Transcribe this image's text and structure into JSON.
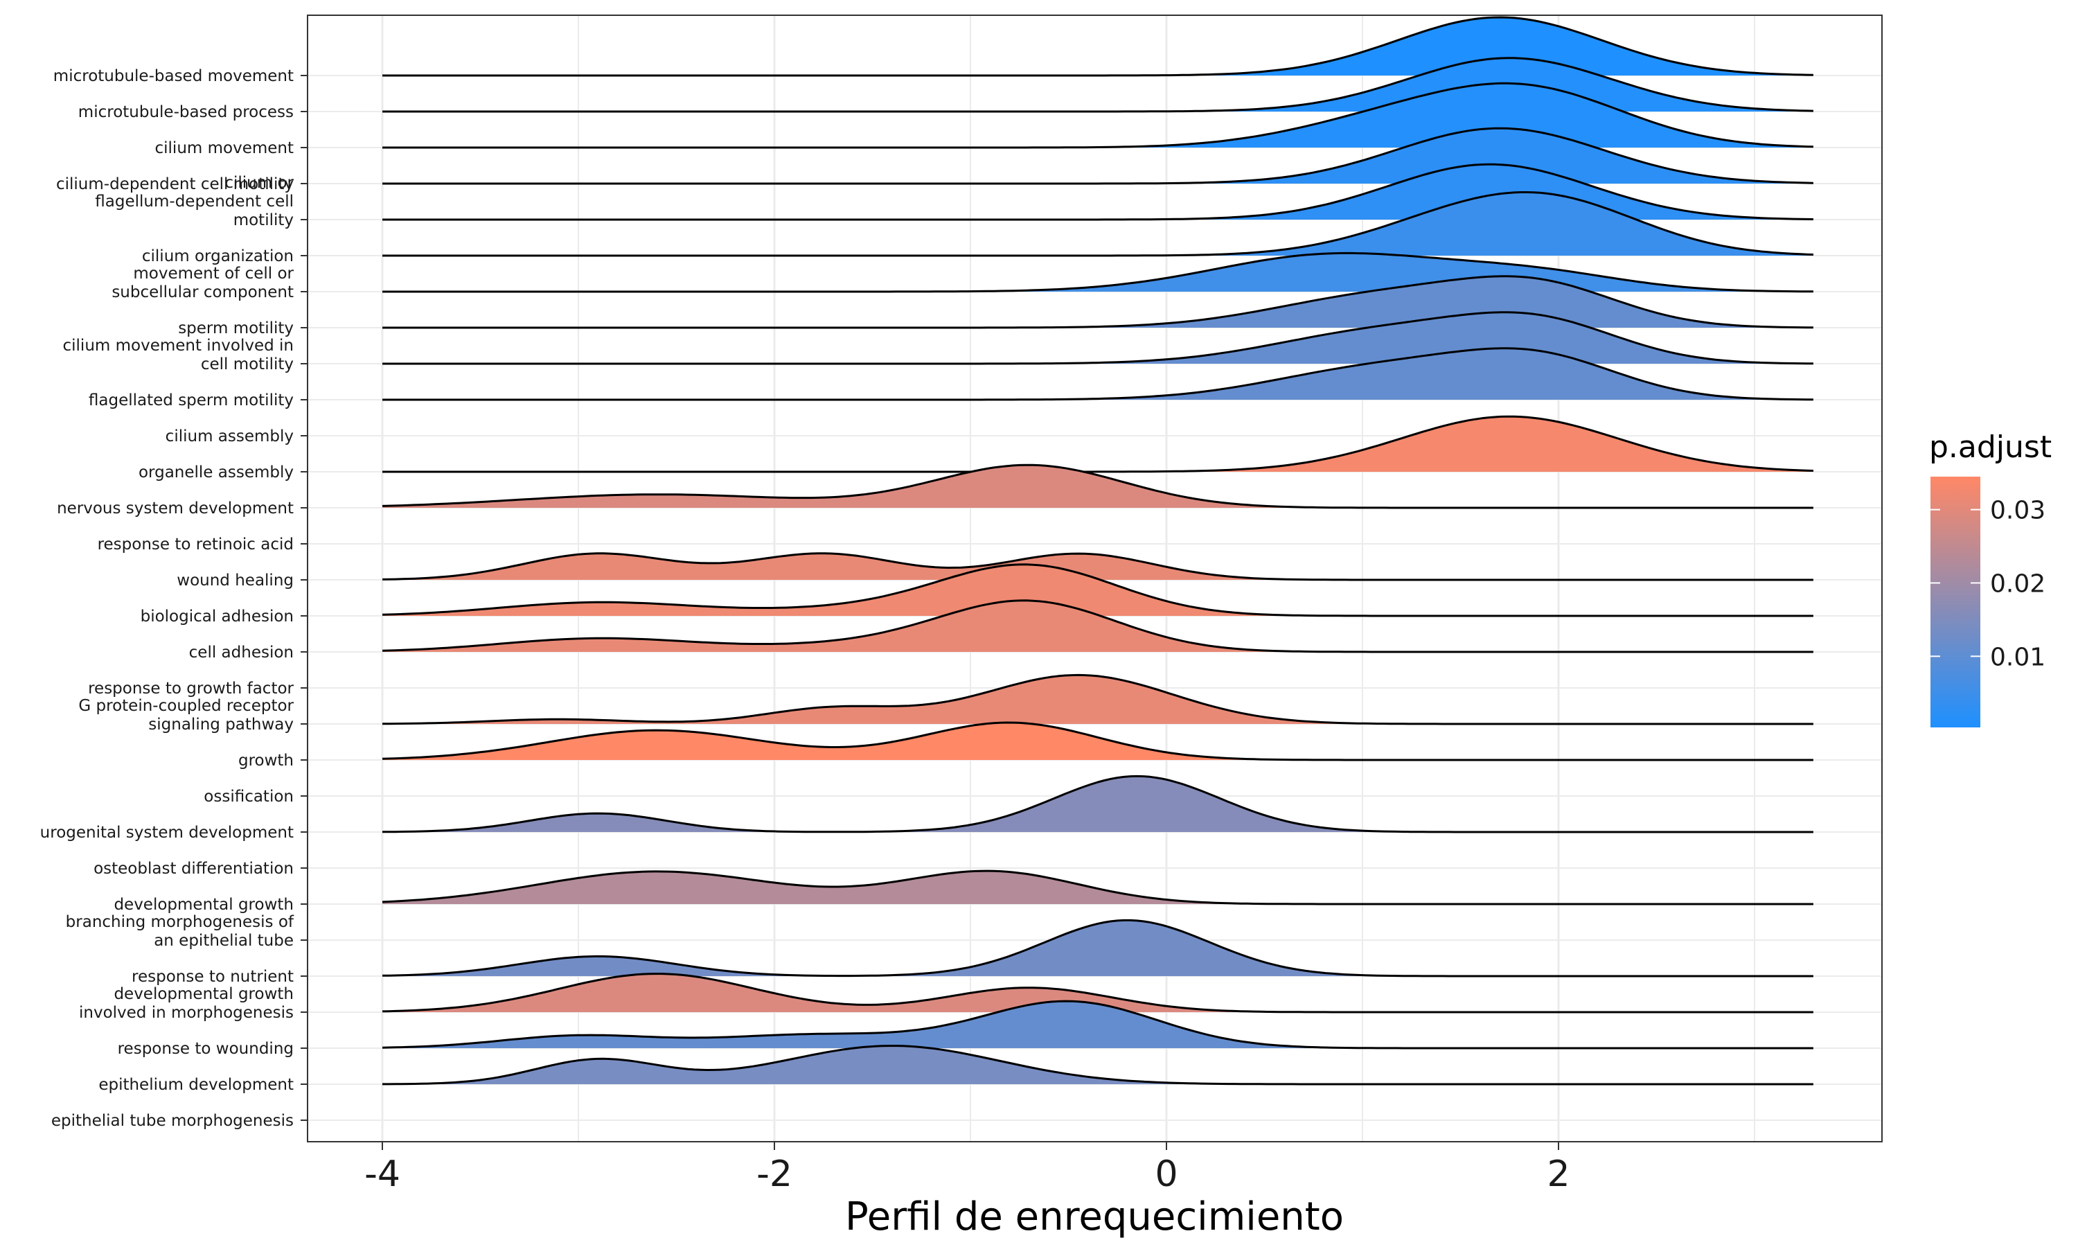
{
  "chart_data": {
    "type": "ridgeline",
    "xlabel": "Perfil de enrequecimiento",
    "ylabel": "",
    "xlim": [
      -4.4,
      3.6
    ],
    "x_ticks": [
      -4,
      -2,
      0,
      2
    ],
    "x_tick_labels": [
      "-4",
      "-2",
      "0",
      "2"
    ],
    "x_range_lines": [
      -4.0,
      3.3
    ],
    "grid": true,
    "legend": {
      "title": "p.adjust",
      "position": "right",
      "ticks": [
        0.01,
        0.02,
        0.03
      ],
      "tick_labels": [
        "0.01",
        "0.02",
        "0.03"
      ],
      "range": [
        0.0003,
        0.0345
      ],
      "color_low": "#1E90FF",
      "color_high": "#FF8866"
    },
    "categories": [
      {
        "lines": [
          "microtubule-based movement"
        ]
      },
      {
        "lines": [
          "microtubule-based process"
        ]
      },
      {
        "lines": [
          "cilium movement"
        ]
      },
      {
        "lines": [
          "cilium-dependent cell motility"
        ]
      },
      {
        "lines": [
          "cilium or",
          "flagellum-dependent cell",
          "motility"
        ]
      },
      {
        "lines": [
          "cilium organization"
        ]
      },
      {
        "lines": [
          "movement of cell or",
          "subcellular component"
        ]
      },
      {
        "lines": [
          "sperm motility"
        ]
      },
      {
        "lines": [
          "cilium movement involved in",
          "cell motility"
        ]
      },
      {
        "lines": [
          "flagellated sperm motility"
        ]
      },
      {
        "lines": [
          "cilium assembly"
        ]
      },
      {
        "lines": [
          "organelle assembly"
        ]
      },
      {
        "lines": [
          "nervous system development"
        ]
      },
      {
        "lines": [
          "response to retinoic acid"
        ]
      },
      {
        "lines": [
          "wound healing"
        ]
      },
      {
        "lines": [
          "biological adhesion"
        ]
      },
      {
        "lines": [
          "cell adhesion"
        ]
      },
      {
        "lines": [
          "response to growth factor"
        ]
      },
      {
        "lines": [
          "G protein-coupled receptor",
          "signaling pathway"
        ]
      },
      {
        "lines": [
          "growth"
        ]
      },
      {
        "lines": [
          "ossification"
        ]
      },
      {
        "lines": [
          "urogenital system development"
        ]
      },
      {
        "lines": [
          "osteoblast differentiation"
        ]
      },
      {
        "lines": [
          "developmental growth"
        ]
      },
      {
        "lines": [
          "branching morphogenesis of",
          "an epithelial tube"
        ]
      },
      {
        "lines": [
          "response to nutrient"
        ]
      },
      {
        "lines": [
          "developmental growth",
          "involved in morphogenesis"
        ]
      },
      {
        "lines": [
          "response to wounding"
        ]
      },
      {
        "lines": [
          "epithelium development"
        ]
      },
      {
        "lines": [
          "epithelial tube morphogenesis"
        ]
      }
    ],
    "series": [
      {
        "label_index": 1,
        "p_adjust": 0.0003,
        "peaks": [
          [
            1.7,
            0.52,
            1.0
          ]
        ]
      },
      {
        "label_index": 2,
        "p_adjust": 0.0012,
        "peaks": [
          [
            1.75,
            0.52,
            0.92
          ]
        ]
      },
      {
        "label_index": 3,
        "p_adjust": 0.0012,
        "peaks": [
          [
            1.85,
            0.5,
            0.95
          ],
          [
            1.1,
            0.5,
            0.4
          ]
        ]
      },
      {
        "label_index": 4,
        "p_adjust": 0.0025,
        "peaks": [
          [
            1.7,
            0.53,
            0.95
          ]
        ]
      },
      {
        "label_index": 5,
        "p_adjust": 0.0028,
        "peaks": [
          [
            1.65,
            0.52,
            0.95
          ]
        ]
      },
      {
        "label_index": 6,
        "p_adjust": 0.0045,
        "peaks": [
          [
            1.95,
            0.48,
            0.92
          ],
          [
            1.35,
            0.45,
            0.35
          ]
        ]
      },
      {
        "label_index": 7,
        "p_adjust": 0.0055,
        "peaks": [
          [
            0.85,
            0.6,
            0.64
          ],
          [
            1.9,
            0.45,
            0.28
          ]
        ]
      },
      {
        "label_index": 8,
        "p_adjust": 0.011,
        "peaks": [
          [
            1.9,
            0.42,
            0.65
          ],
          [
            1.1,
            0.55,
            0.55
          ]
        ]
      },
      {
        "label_index": 9,
        "p_adjust": 0.011,
        "peaks": [
          [
            1.9,
            0.42,
            0.65
          ],
          [
            1.1,
            0.55,
            0.55
          ]
        ]
      },
      {
        "label_index": 10,
        "p_adjust": 0.011,
        "peaks": [
          [
            1.9,
            0.42,
            0.65
          ],
          [
            1.1,
            0.55,
            0.55
          ]
        ]
      },
      {
        "label_index": 12,
        "p_adjust": 0.033,
        "peaks": [
          [
            1.75,
            0.55,
            0.95
          ]
        ]
      },
      {
        "label_index": 13,
        "p_adjust": 0.029,
        "peaks": [
          [
            -0.7,
            0.48,
            0.73
          ],
          [
            -2.6,
            0.7,
            0.23
          ]
        ]
      },
      {
        "label_index": 15,
        "p_adjust": 0.031,
        "peaks": [
          [
            -2.9,
            0.38,
            0.45
          ],
          [
            -1.75,
            0.38,
            0.45
          ],
          [
            -0.45,
            0.38,
            0.45
          ]
        ]
      },
      {
        "label_index": 16,
        "p_adjust": 0.032,
        "peaks": [
          [
            -0.7,
            0.45,
            0.84
          ],
          [
            -2.9,
            0.5,
            0.23
          ],
          [
            -1.5,
            0.55,
            0.12
          ]
        ]
      },
      {
        "label_index": 17,
        "p_adjust": 0.031,
        "peaks": [
          [
            -0.7,
            0.45,
            0.84
          ],
          [
            -2.9,
            0.5,
            0.23
          ],
          [
            -1.5,
            0.55,
            0.12
          ]
        ]
      },
      {
        "label_index": 19,
        "p_adjust": 0.031,
        "peaks": [
          [
            -0.45,
            0.48,
            0.84
          ],
          [
            -1.7,
            0.35,
            0.27
          ],
          [
            -3.1,
            0.35,
            0.08
          ]
        ]
      },
      {
        "label_index": 20,
        "p_adjust": 0.0345,
        "peaks": [
          [
            -0.8,
            0.45,
            0.64
          ],
          [
            -2.6,
            0.55,
            0.51
          ]
        ]
      },
      {
        "label_index": 22,
        "p_adjust": 0.016,
        "peaks": [
          [
            -0.15,
            0.42,
            0.96
          ],
          [
            -2.9,
            0.35,
            0.32
          ]
        ]
      },
      {
        "label_index": 24,
        "p_adjust": 0.023,
        "peaks": [
          [
            -2.6,
            0.6,
            0.56
          ],
          [
            -0.9,
            0.45,
            0.56
          ]
        ]
      },
      {
        "label_index": 26,
        "p_adjust": 0.013,
        "peaks": [
          [
            -0.2,
            0.42,
            0.96
          ],
          [
            -2.9,
            0.4,
            0.34
          ]
        ]
      },
      {
        "label_index": 27,
        "p_adjust": 0.029,
        "peaks": [
          [
            -2.6,
            0.5,
            0.66
          ],
          [
            -0.7,
            0.42,
            0.42
          ]
        ]
      },
      {
        "label_index": 28,
        "p_adjust": 0.011,
        "peaks": [
          [
            -0.5,
            0.45,
            0.8
          ],
          [
            -1.8,
            0.5,
            0.23
          ],
          [
            -3.0,
            0.4,
            0.21
          ]
        ]
      },
      {
        "label_index": 29,
        "p_adjust": 0.014,
        "peaks": [
          [
            -2.9,
            0.32,
            0.42
          ],
          [
            -1.4,
            0.55,
            0.66
          ]
        ]
      }
    ]
  }
}
